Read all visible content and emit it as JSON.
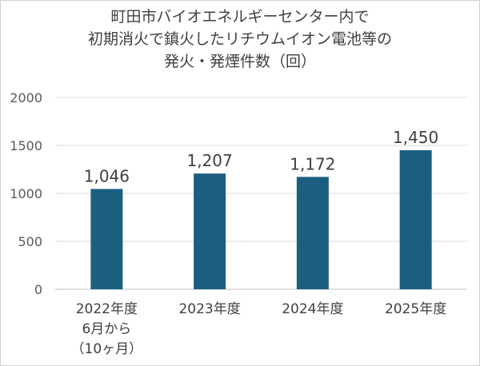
{
  "chart_data": {
    "type": "bar",
    "title_lines": [
      "町田市バイオエネルギーセンター内で",
      "初期消火で鎮火したリチウムイオン電池等の",
      "発火・発煙件数（回）"
    ],
    "categories": [
      [
        "2022年度",
        "6月から",
        "（10ヶ月）"
      ],
      [
        "2023年度"
      ],
      [
        "2024年度"
      ],
      [
        "2025年度"
      ]
    ],
    "values": [
      1046,
      1207,
      1172,
      1450
    ],
    "data_labels": [
      "1,046",
      "1,207",
      "1,172",
      "1,450"
    ],
    "yticks": [
      "0",
      "500",
      "1000",
      "1500",
      "2000"
    ],
    "ylim": [
      0,
      2000
    ],
    "grid": true,
    "legend": "none",
    "bar_color": "#1b5f80",
    "grid_color": "#d9d9d9"
  }
}
